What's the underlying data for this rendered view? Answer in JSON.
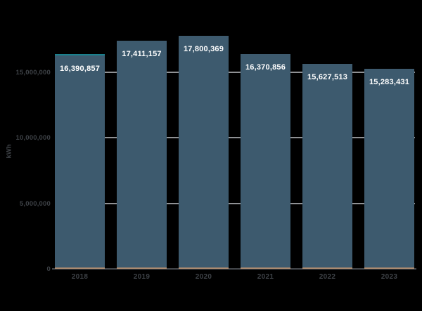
{
  "chart_data": {
    "type": "bar",
    "title": "",
    "xlabel": "",
    "ylabel": "kWh",
    "categories": [
      "2018",
      "2019",
      "2020",
      "2021",
      "2022",
      "2023"
    ],
    "values": [
      16390857,
      17411157,
      17800369,
      16370856,
      15627513,
      15283431
    ],
    "value_labels": [
      "16,390,857",
      "17,411,157",
      "17,800,369",
      "16,370,856",
      "15,627,513",
      "15,283,431"
    ],
    "yticks": [
      0,
      5000000,
      10000000,
      15000000
    ],
    "ytick_labels": [
      "0",
      "5,000,000",
      "10,000,000",
      "15,000,000"
    ],
    "ylim": [
      0,
      20500000
    ],
    "grid": true,
    "legend": "none",
    "colors": {
      "background": "#000000",
      "bar_fill": "#3d5a6e",
      "bar_label_text": "#ffffff",
      "axis_text": "#3e4247",
      "gridline": "#8f9194",
      "baseline": "#45484c",
      "bar_base_accent": "#aa8a70",
      "first_bar_top_accent": "#1a808d"
    }
  }
}
